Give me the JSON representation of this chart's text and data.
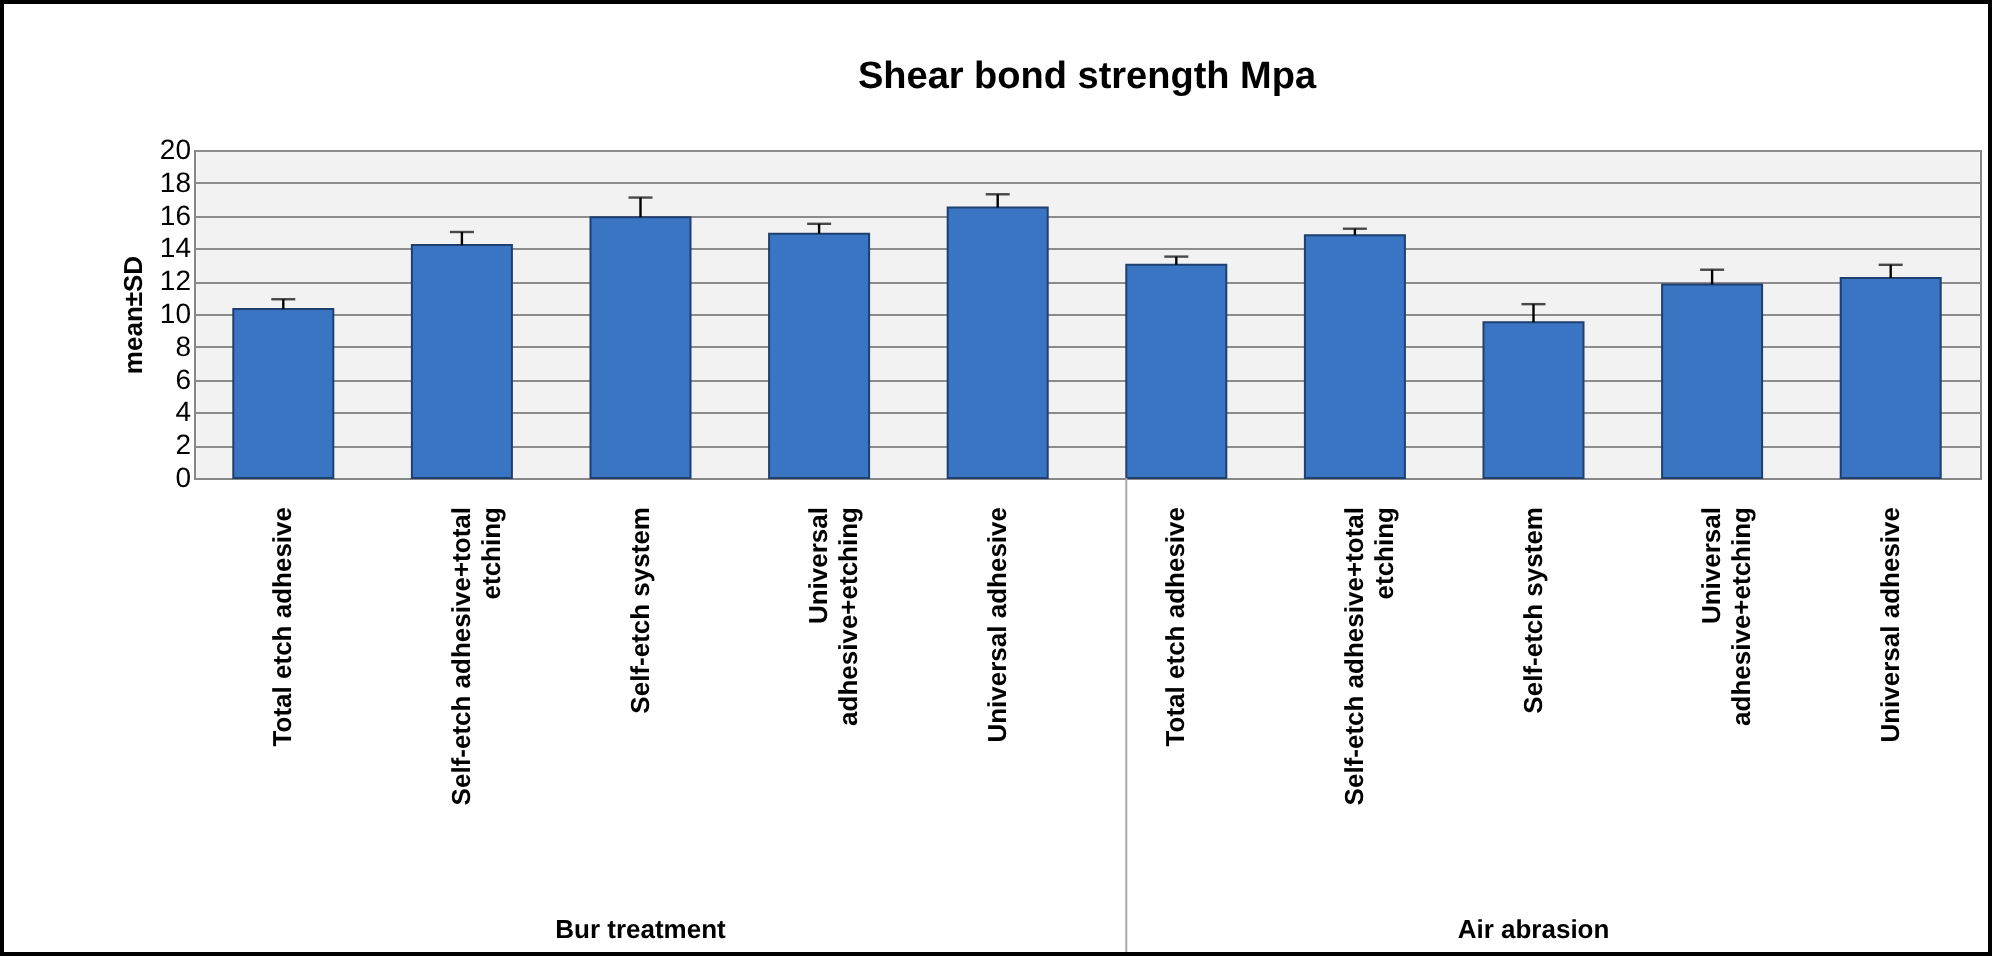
{
  "chart_data": {
    "type": "bar",
    "title": "Shear bond strength Mpa",
    "ylabel": "mean±SD",
    "categories": [
      "Total etch adhesive",
      "Self-etch adhesive+total etching",
      "Self-etch system",
      "Universal adhesive+etching",
      "Universal adhesive",
      "Total etch adhesive",
      "Self-etch adhesive+total etching",
      "Self-etch system",
      "Universal adhesive+etching",
      "Universal adhesive"
    ],
    "values": [
      10.3,
      14.2,
      15.9,
      14.9,
      16.5,
      13.0,
      14.8,
      9.5,
      11.8,
      12.2
    ],
    "errors": [
      [
        10.3,
        10.9
      ],
      [
        14.2,
        15.0
      ],
      [
        15.9,
        17.1
      ],
      [
        14.9,
        15.5
      ],
      [
        16.5,
        17.3
      ],
      [
        13.0,
        13.5
      ],
      [
        14.8,
        15.2
      ],
      [
        9.5,
        10.6
      ],
      [
        11.8,
        12.7
      ],
      [
        12.2,
        13.0
      ]
    ],
    "color": "#3a75c4",
    "ylim": [
      0,
      20
    ],
    "yticks": [
      0,
      2,
      4,
      6,
      8,
      10,
      12,
      14,
      16,
      18,
      20
    ],
    "grid": "y",
    "annotations": [
      "Bur treatment",
      "Air abrasion"
    ]
  }
}
